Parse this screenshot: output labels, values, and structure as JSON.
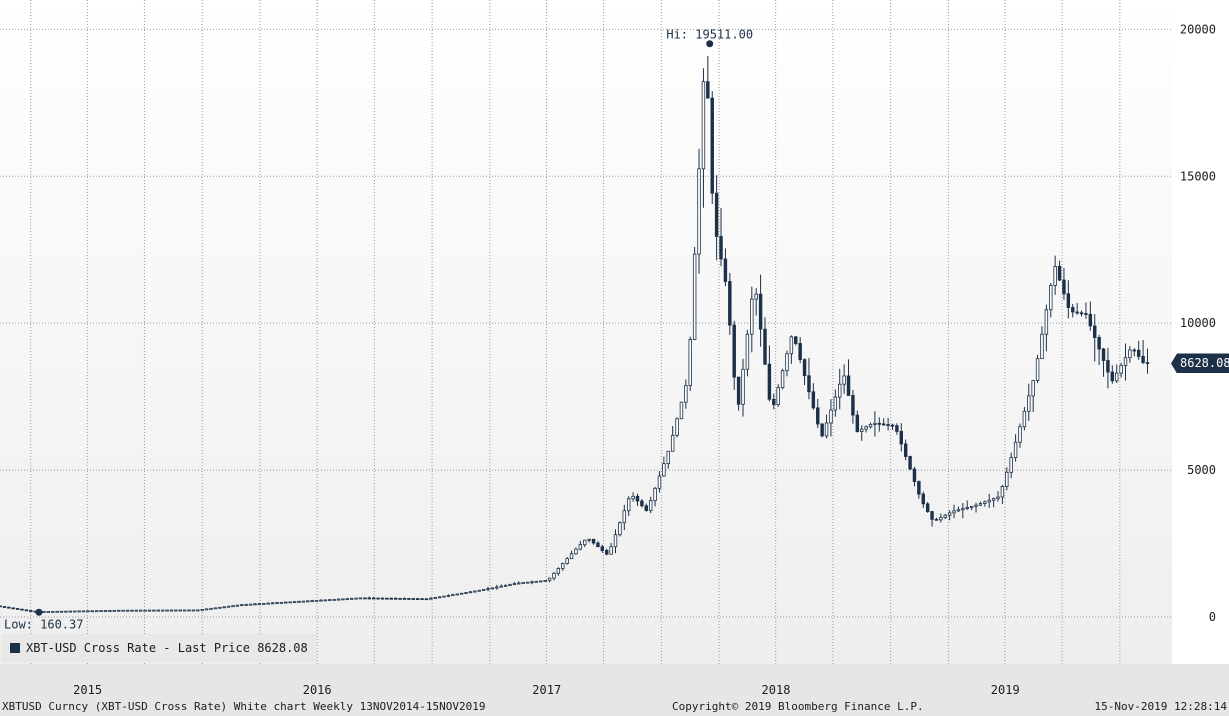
{
  "chart_data": {
    "type": "candlestick",
    "title": "",
    "xlabel": "",
    "ylabel": "",
    "series": [
      {
        "name": "XBT-USD Cross Rate - Last Price",
        "frequency": "Weekly",
        "anchors": [
          [
            "2014-11-13",
            380
          ],
          [
            "2015-01-14",
            180
          ],
          [
            "2015-06-01",
            230
          ],
          [
            "2015-10-01",
            240
          ],
          [
            "2015-12-10",
            420
          ],
          [
            "2016-06-15",
            650
          ],
          [
            "2016-10-01",
            620
          ],
          [
            "2016-12-20",
            900
          ],
          [
            "2017-02-20",
            1150
          ],
          [
            "2017-04-10",
            1250
          ],
          [
            "2017-05-20",
            2200
          ],
          [
            "2017-06-12",
            2700
          ],
          [
            "2017-07-15",
            2100
          ],
          [
            "2017-08-20",
            4200
          ],
          [
            "2017-09-15",
            3600
          ],
          [
            "2017-10-20",
            5700
          ],
          [
            "2017-11-20",
            8200
          ],
          [
            "2017-12-10",
            16500
          ],
          [
            "2017-12-17",
            19511
          ],
          [
            "2017-12-30",
            13500
          ],
          [
            "2018-01-20",
            11200
          ],
          [
            "2018-02-06",
            6900
          ],
          [
            "2018-03-05",
            11500
          ],
          [
            "2018-04-01",
            6900
          ],
          [
            "2018-05-05",
            9700
          ],
          [
            "2018-06-20",
            6100
          ],
          [
            "2018-07-25",
            8300
          ],
          [
            "2018-08-15",
            6300
          ],
          [
            "2018-09-10",
            6600
          ],
          [
            "2018-10-15",
            6500
          ],
          [
            "2018-11-25",
            4000
          ],
          [
            "2018-12-15",
            3250
          ],
          [
            "2019-01-15",
            3600
          ],
          [
            "2019-02-20",
            3800
          ],
          [
            "2019-03-30",
            4100
          ],
          [
            "2019-04-15",
            5200
          ],
          [
            "2019-05-25",
            8200
          ],
          [
            "2019-06-26",
            12000
          ],
          [
            "2019-07-20",
            10400
          ],
          [
            "2019-08-15",
            10300
          ],
          [
            "2019-09-25",
            8000
          ],
          [
            "2019-10-27",
            9200
          ],
          [
            "2019-11-15",
            8628.08
          ]
        ]
      }
    ],
    "ylim": [
      -1600,
      21000
    ],
    "yticks": [
      0,
      5000,
      10000,
      15000,
      20000
    ],
    "ytick_labels": [
      "0",
      "5000",
      "10000",
      "15000",
      "20000"
    ],
    "xlim": [
      "2014-11-13",
      "2019-11-18"
    ],
    "xticks": [
      "2015-01-01",
      "2016-01-01",
      "2017-01-01",
      "2018-01-01",
      "2019-01-01"
    ],
    "xtick_labels": [
      "2015",
      "2016",
      "2017",
      "2018",
      "2019"
    ],
    "vgrid_dates": [
      "2014-07-01",
      "2014-10-01",
      "2015-01-01",
      "2015-04-01",
      "2015-07-01",
      "2015-10-01",
      "2016-01-01",
      "2016-04-01",
      "2016-07-01",
      "2016-10-01",
      "2017-01-01",
      "2017-04-01",
      "2017-07-01",
      "2017-10-01",
      "2018-01-01",
      "2018-04-01",
      "2018-07-01",
      "2018-10-01",
      "2019-01-01",
      "2019-04-01",
      "2019-07-01",
      "2019-10-01"
    ],
    "grid": true,
    "high": {
      "date": "2017-12-17",
      "value": 19511.0,
      "label": "Hi: 19511.00"
    },
    "low": {
      "date": "2015-01-14",
      "value": 160.37,
      "label": "Low: 160.37"
    },
    "last": {
      "date": "2019-11-15",
      "value": 8628.08,
      "label": "8628.08"
    },
    "legend": {
      "text": "XBT-USD Cross Rate - Last Price 8628.08",
      "placement": "bottom-left"
    },
    "colors": {
      "candle": "#1c3048",
      "hollow": "#ffffff",
      "grid": "#9a9a9a"
    }
  },
  "footer": {
    "left": "XBTUSD Curncy (XBT-USD Cross Rate) White chart  Weekly 13NOV2014-15NOV2019",
    "center": "Copyright© 2019 Bloomberg Finance L.P.",
    "right": "15-Nov-2019 12:28:14"
  }
}
